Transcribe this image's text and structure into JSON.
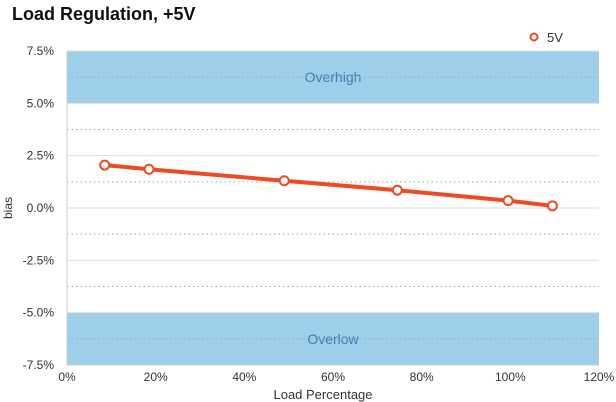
{
  "chart_data": {
    "type": "line",
    "title": "Load Regulation, +5V",
    "xlabel": "Load Percentage",
    "ylabel": "bias",
    "xlim": [
      0,
      120
    ],
    "ylim": [
      -7.5,
      7.5
    ],
    "x_ticks": [
      0,
      20,
      40,
      60,
      80,
      100,
      120
    ],
    "x_tick_labels": [
      "0%",
      "20%",
      "40%",
      "60%",
      "80%",
      "100%",
      "120%"
    ],
    "y_ticks": [
      7.5,
      5.0,
      2.5,
      0.0,
      -2.5,
      -5.0,
      -7.5
    ],
    "y_tick_labels": [
      "7.5%",
      "5.0%",
      "2.5%",
      "0.0%",
      "-2.5%",
      "-5.0%",
      "-7.5%"
    ],
    "grid": true,
    "legend_position": "top-right",
    "bands": [
      {
        "label": "Overhigh",
        "from": 5.0,
        "to": 7.5,
        "color": "#9dcfea"
      },
      {
        "label": "Overlow",
        "from": -7.5,
        "to": -5.0,
        "color": "#9dcfea"
      }
    ],
    "series": [
      {
        "name": "5V",
        "color": "#ee4b25",
        "x": [
          8.5,
          18.5,
          49,
          74.5,
          99.5,
          109.5
        ],
        "y": [
          2.05,
          1.85,
          1.3,
          0.85,
          0.35,
          0.1
        ]
      }
    ]
  }
}
